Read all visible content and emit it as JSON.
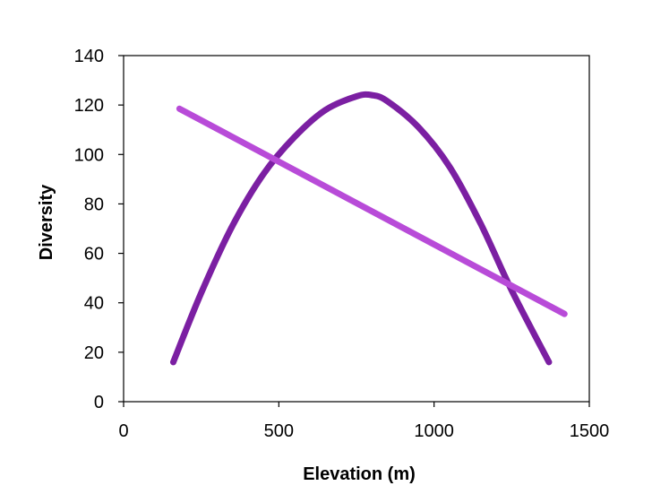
{
  "chart_data": {
    "type": "line",
    "title": "",
    "xlabel": "Elevation (m)",
    "ylabel": "Diversity",
    "xlim": [
      0,
      1500
    ],
    "ylim": [
      0,
      140
    ],
    "x_ticks": [
      0,
      500,
      1000,
      1500
    ],
    "y_ticks": [
      0,
      20,
      40,
      60,
      80,
      100,
      120,
      140
    ],
    "grid": false,
    "legend": "none",
    "series": [
      {
        "color": "#7B1FA2",
        "x": [
          160,
          250,
          350,
          450,
          550,
          650,
          750,
          800,
          850,
          950,
          1050,
          1150,
          1250,
          1370
        ],
        "y": [
          16,
          44,
          71,
          92,
          107,
          118,
          123.5,
          124,
          121.5,
          111,
          95,
          72,
          45,
          16
        ]
      },
      {
        "color": "#B84BD8",
        "x": [
          180,
          1420
        ],
        "y": [
          118.5,
          35.5
        ]
      }
    ]
  }
}
